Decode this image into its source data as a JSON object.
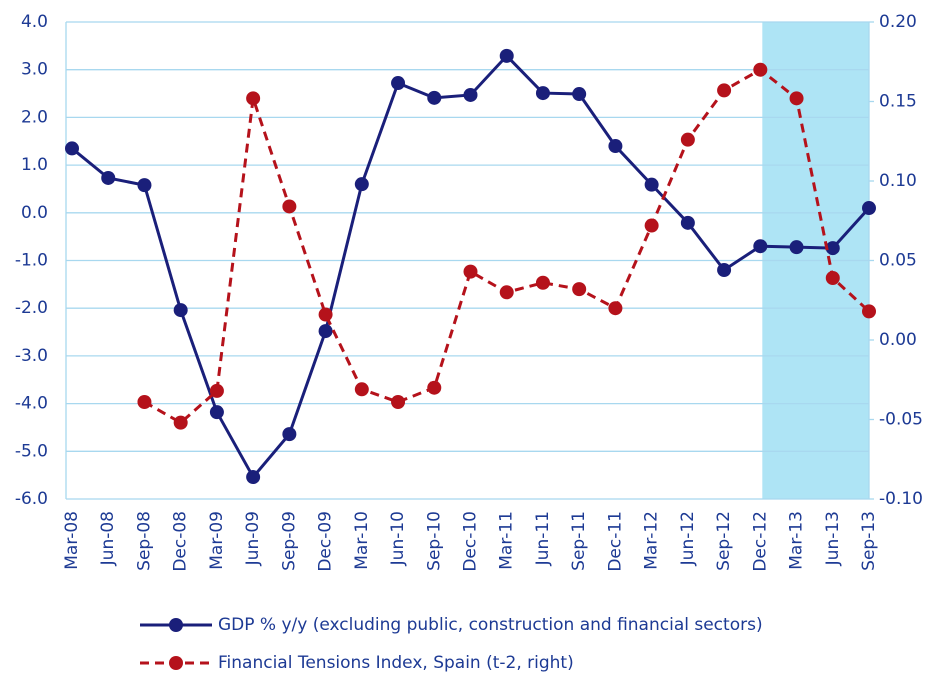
{
  "chart_data": {
    "type": "line",
    "categories": [
      "Mar-08",
      "Jun-08",
      "Sep-08",
      "Dec-08",
      "Mar-09",
      "Jun-09",
      "Sep-09",
      "Dec-09",
      "Mar-10",
      "Jun-10",
      "Sep-10",
      "Dec-10",
      "Mar-11",
      "Jun-11",
      "Sep-11",
      "Dec-11",
      "Mar-12",
      "Jun-12",
      "Sep-12",
      "Dec-12",
      "Mar-13",
      "Jun-13",
      "Sep-13"
    ],
    "series": [
      {
        "name": "GDP % y/y (excluding public, construction and financial sectors)",
        "color": "#1a1f7a",
        "dash": false,
        "values": [
          1.35,
          0.73,
          0.58,
          -2.04,
          -4.18,
          -5.54,
          -4.64,
          -2.48,
          0.6,
          2.72,
          2.41,
          2.47,
          3.29,
          2.51,
          2.49,
          1.4,
          0.59,
          -0.21,
          -1.2,
          -0.7,
          -0.72,
          -0.74,
          0.1
        ]
      },
      {
        "name": "Financial Tensions Index, Spain (t-2, right)",
        "color": "#b5121b",
        "dash": true,
        "axis": "y2",
        "values": [
          null,
          null,
          -0.039,
          -0.052,
          -0.032,
          0.152,
          0.084,
          0.016,
          -0.031,
          -0.039,
          -0.03,
          0.043,
          0.03,
          0.036,
          0.032,
          0.02,
          0.072,
          0.126,
          0.157,
          0.17,
          0.152,
          0.039,
          0.018
        ]
      }
    ],
    "ylim": [
      -6,
      4
    ],
    "yticks": [
      {
        "value": -6,
        "label": "-6.0"
      },
      {
        "value": -5,
        "label": "-5.0"
      },
      {
        "value": -4,
        "label": "-4.0"
      },
      {
        "value": -3,
        "label": "-3.0"
      },
      {
        "value": -2,
        "label": "-2.0"
      },
      {
        "value": -1,
        "label": "-1.0"
      },
      {
        "value": 0,
        "label": "0.0"
      },
      {
        "value": 1,
        "label": "1.0"
      },
      {
        "value": 2,
        "label": "2.0"
      },
      {
        "value": 3,
        "label": "3.0"
      },
      {
        "value": 4,
        "label": "4.0"
      }
    ],
    "y2lim": [
      -0.1,
      0.2
    ],
    "y2ticks": [
      {
        "value": -0.1,
        "label": "-0.10"
      },
      {
        "value": -0.05,
        "label": "-0.05"
      },
      {
        "value": 0,
        "label": "0.00"
      },
      {
        "value": 0.05,
        "label": "0.05"
      },
      {
        "value": 0.1,
        "label": "0.10"
      },
      {
        "value": 0.15,
        "label": "0.15"
      },
      {
        "value": 0.2,
        "label": "0.20"
      }
    ],
    "grid": true,
    "highlight_range": [
      "Dec-12",
      "Sep-13"
    ],
    "highlight_color": "#aee4f5",
    "legend": "bottom"
  }
}
